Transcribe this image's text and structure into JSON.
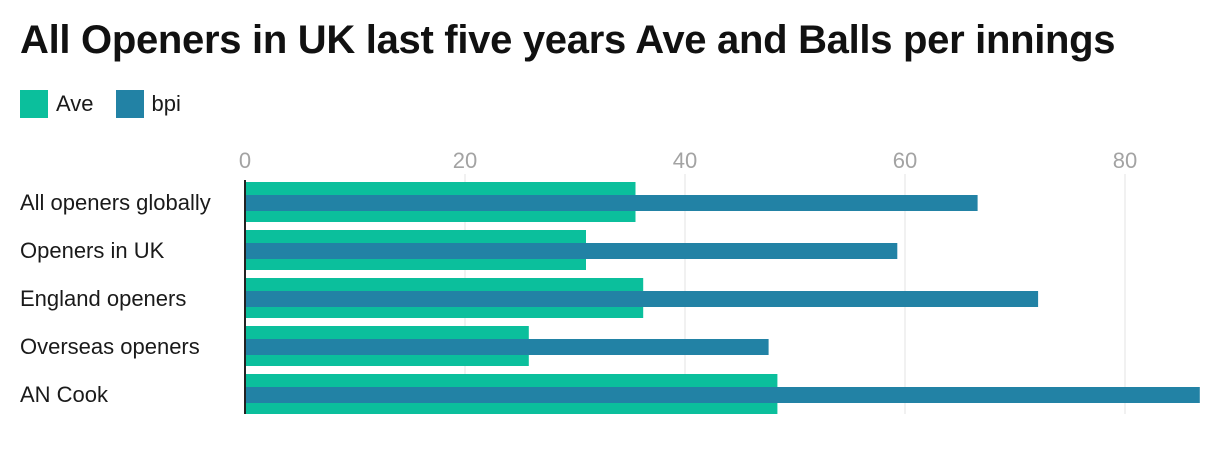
{
  "chart_data": {
    "type": "bar",
    "orientation": "horizontal",
    "title": "All Openers in UK last five years Ave and Balls per innings",
    "categories": [
      "All openers globally",
      "Openers in UK",
      "England openers",
      "Overseas openers",
      "AN Cook"
    ],
    "series": [
      {
        "name": "Ave",
        "color": "#0bbf9c",
        "values": [
          35.5,
          31,
          36.2,
          25.8,
          48.4
        ]
      },
      {
        "name": "bpi",
        "color": "#2282a5",
        "values": [
          66.6,
          59.3,
          72.1,
          47.6,
          86.8
        ]
      }
    ],
    "xlim": [
      0,
      87
    ],
    "xticks": [
      "0",
      "20",
      "40",
      "60",
      "80"
    ],
    "grid": true,
    "legend_position": "top-left"
  }
}
